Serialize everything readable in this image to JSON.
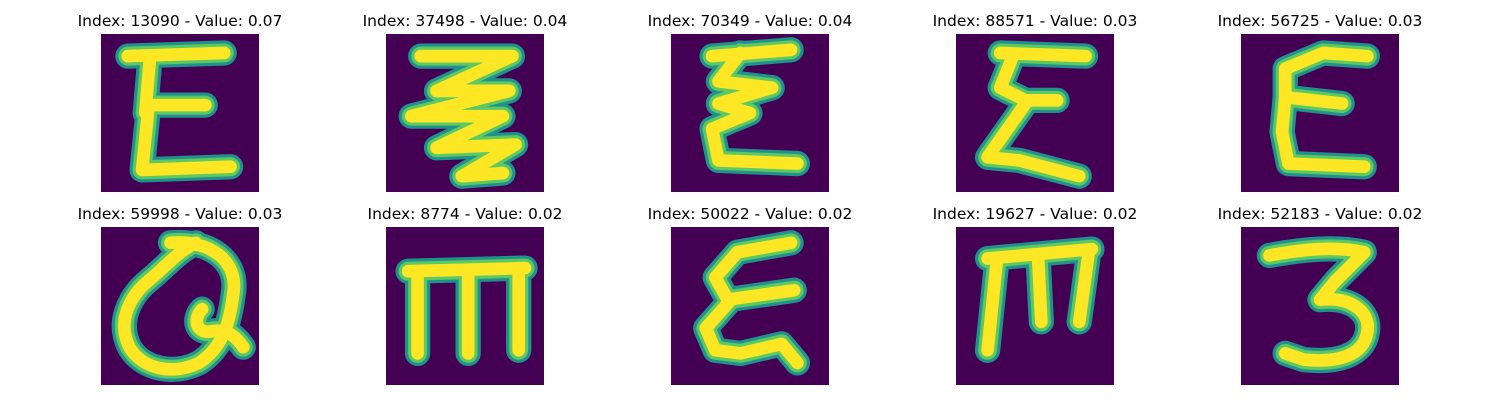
{
  "colors": {
    "background": "#440154",
    "stroke_outer": "#21918c",
    "stroke_mid": "#5ec962",
    "stroke_core": "#fde725"
  },
  "panels": [
    {
      "title": "Index: 13090 - Value: 0.07",
      "glyph": "E"
    },
    {
      "title": "Index: 37498 - Value: 0.04",
      "glyph": "zigzag"
    },
    {
      "title": "Index: 70349 - Value: 0.04",
      "glyph": "E"
    },
    {
      "title": "Index: 88571 - Value: 0.03",
      "glyph": "E"
    },
    {
      "title": "Index: 56725 - Value: 0.03",
      "glyph": "E"
    },
    {
      "title": "Index: 59998 - Value: 0.03",
      "glyph": "loop"
    },
    {
      "title": "Index: 8774 - Value: 0.02",
      "glyph": "m"
    },
    {
      "title": "Index: 50022 - Value: 0.02",
      "glyph": "E"
    },
    {
      "title": "Index: 19627 - Value: 0.02",
      "glyph": "m"
    },
    {
      "title": "Index: 52183 - Value: 0.02",
      "glyph": "3"
    }
  ]
}
